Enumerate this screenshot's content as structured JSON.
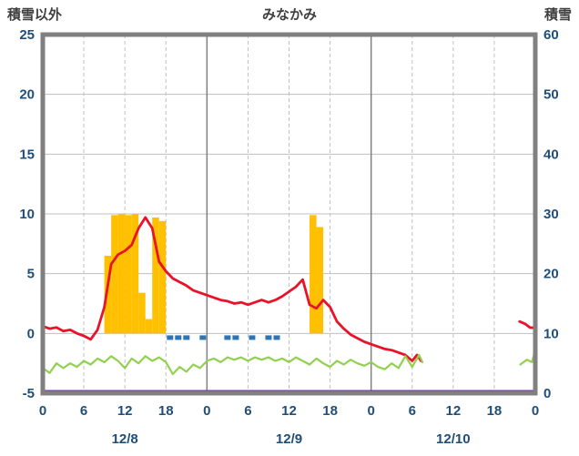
{
  "header": {
    "left_axis_title": "積雪以外",
    "title": "みなかみ",
    "right_axis_title": "積雪"
  },
  "colors": {
    "frame": "#808080",
    "grid_minor": "#BFBFBF",
    "grid_day": "#808080",
    "tick_label": "#1F4E79",
    "title_text": "#404040",
    "background": "#FFFFFF"
  },
  "chart_data": {
    "type": "mixed-bar-line",
    "title": "みなかみ",
    "left_axis": {
      "label": "積雪以外",
      "min": -5,
      "max": 25,
      "ticks": [
        25,
        20,
        15,
        10,
        5,
        0,
        -5
      ]
    },
    "right_axis": {
      "label": "積雪",
      "min": 0,
      "max": 60,
      "ticks": [
        60,
        50,
        40,
        30,
        20,
        10,
        0
      ]
    },
    "x_axis": {
      "min_hour": 0,
      "max_hour": 72,
      "tick_interval": 6,
      "tick_labels": [
        "0",
        "6",
        "12",
        "18",
        "0",
        "6",
        "12",
        "18",
        "0",
        "6",
        "12",
        "18",
        "0"
      ],
      "date_labels": [
        {
          "label": "12/8",
          "hour": 12
        },
        {
          "label": "12/9",
          "hour": 36
        },
        {
          "label": "12/10",
          "hour": 60
        }
      ],
      "day_boundary_hours": [
        24,
        48
      ],
      "grid": true
    },
    "series": [
      {
        "id": "precip",
        "name": "precipitation-bars",
        "type": "bar",
        "axis": "left",
        "color": "#FFC000",
        "points": [
          [
            9,
            6.5
          ],
          [
            10,
            9.9
          ],
          [
            11,
            10
          ],
          [
            12,
            9.9
          ],
          [
            13,
            10
          ],
          [
            14,
            3.4
          ],
          [
            15,
            1.2
          ],
          [
            16,
            9.7
          ],
          [
            17,
            9.4
          ],
          [
            39,
            9.9
          ],
          [
            40,
            8.9
          ]
        ]
      },
      {
        "id": "temp",
        "name": "temperature-line",
        "type": "line",
        "axis": "left",
        "color": "#E8132A",
        "width": 2.8,
        "segments": [
          [
            [
              0,
              0.6
            ],
            [
              1,
              0.4
            ],
            [
              2,
              0.5
            ],
            [
              3,
              0.2
            ],
            [
              4,
              0.3
            ],
            [
              5,
              0
            ],
            [
              6,
              -0.2
            ],
            [
              7,
              -0.5
            ],
            [
              8,
              0.3
            ],
            [
              9,
              2.2
            ],
            [
              10,
              5.8
            ],
            [
              11,
              6.6
            ],
            [
              12,
              6.9
            ],
            [
              13,
              7.4
            ],
            [
              14,
              8.8
            ],
            [
              15,
              9.7
            ],
            [
              16,
              8.8
            ],
            [
              17,
              6
            ],
            [
              18,
              5.2
            ],
            [
              19,
              4.6
            ],
            [
              20,
              4.3
            ],
            [
              21,
              4
            ],
            [
              22,
              3.6
            ],
            [
              23,
              3.4
            ],
            [
              24,
              3.2
            ],
            [
              25,
              3
            ],
            [
              26,
              2.8
            ],
            [
              27,
              2.7
            ],
            [
              28,
              2.5
            ],
            [
              29,
              2.6
            ],
            [
              30,
              2.4
            ],
            [
              31,
              2.6
            ],
            [
              32,
              2.8
            ],
            [
              33,
              2.6
            ],
            [
              34,
              2.8
            ],
            [
              35,
              3.1
            ],
            [
              36,
              3.5
            ],
            [
              37,
              3.9
            ],
            [
              38,
              4.5
            ],
            [
              39,
              2.4
            ],
            [
              40,
              2.1
            ],
            [
              41,
              2.8
            ],
            [
              42,
              2.2
            ],
            [
              43,
              1
            ],
            [
              44,
              0.4
            ],
            [
              45,
              -0.1
            ],
            [
              46,
              -0.4
            ],
            [
              47,
              -0.7
            ],
            [
              48,
              -0.9
            ],
            [
              49,
              -1.1
            ],
            [
              50,
              -1.3
            ],
            [
              51,
              -1.4
            ],
            [
              52,
              -1.6
            ],
            [
              53,
              -1.8
            ],
            [
              54,
              -2.3
            ],
            [
              54.7,
              -1.8
            ],
            [
              55.3,
              -2.3
            ]
          ],
          [
            [
              69.7,
              1
            ],
            [
              70.5,
              0.8
            ],
            [
              71.2,
              0.5
            ],
            [
              72,
              0.45
            ]
          ]
        ]
      },
      {
        "id": "wind",
        "name": "green-line",
        "type": "line",
        "axis": "left",
        "color": "#92D050",
        "width": 2.2,
        "segments": [
          [
            [
              0,
              -2.9
            ],
            [
              1,
              -3.3
            ],
            [
              2,
              -2.5
            ],
            [
              3,
              -2.9
            ],
            [
              4,
              -2.5
            ],
            [
              5,
              -2.8
            ],
            [
              6,
              -2.3
            ],
            [
              7,
              -2.6
            ],
            [
              8,
              -2.1
            ],
            [
              9,
              -2.4
            ],
            [
              10,
              -1.9
            ],
            [
              11,
              -2.3
            ],
            [
              12,
              -2.9
            ],
            [
              13,
              -2.1
            ],
            [
              14,
              -2.5
            ],
            [
              15,
              -1.9
            ],
            [
              16,
              -2.3
            ],
            [
              17,
              -2
            ],
            [
              18,
              -2.4
            ],
            [
              19,
              -3.4
            ],
            [
              20,
              -2.8
            ],
            [
              21,
              -3.2
            ],
            [
              22,
              -2.6
            ],
            [
              23,
              -2.9
            ],
            [
              24,
              -2.3
            ],
            [
              25,
              -2.1
            ],
            [
              26,
              -2.4
            ],
            [
              27,
              -2
            ],
            [
              28,
              -2.2
            ],
            [
              29,
              -2
            ],
            [
              30,
              -2.3
            ],
            [
              31,
              -2
            ],
            [
              32,
              -2.2
            ],
            [
              33,
              -2
            ],
            [
              34,
              -2.3
            ],
            [
              35,
              -2.1
            ],
            [
              36,
              -2.4
            ],
            [
              37,
              -2
            ],
            [
              38,
              -2.3
            ],
            [
              39,
              -2.6
            ],
            [
              40,
              -2.1
            ],
            [
              41,
              -2.5
            ],
            [
              42,
              -2.8
            ],
            [
              43,
              -2.3
            ],
            [
              44,
              -2.6
            ],
            [
              45,
              -2.2
            ],
            [
              46,
              -2.5
            ],
            [
              47,
              -2.7
            ],
            [
              48,
              -2.4
            ],
            [
              49,
              -2.8
            ],
            [
              50,
              -3
            ],
            [
              51,
              -2.5
            ],
            [
              52,
              -2.9
            ],
            [
              53,
              -1.9
            ],
            [
              54,
              -2.8
            ],
            [
              55,
              -1.8
            ],
            [
              55.5,
              -2.4
            ]
          ],
          [
            [
              69.8,
              -2.6
            ],
            [
              70.8,
              -2.2
            ],
            [
              71.5,
              -2.4
            ],
            [
              72,
              -1.4
            ]
          ]
        ]
      },
      {
        "id": "snowfall",
        "name": "snowfall-marks",
        "type": "tick-marks",
        "axis": "left",
        "color": "#2E75B6",
        "value": -0.35,
        "hours": [
          18.6,
          19.8,
          21,
          23.4,
          27,
          28.2,
          30.6,
          33,
          34.2
        ]
      },
      {
        "id": "snowdepth",
        "name": "snow-depth-line",
        "type": "line",
        "axis": "right",
        "color": "#7030A0",
        "width": 3,
        "segments": [
          [
            [
              0,
              0
            ],
            [
              72,
              0
            ]
          ]
        ]
      }
    ]
  }
}
